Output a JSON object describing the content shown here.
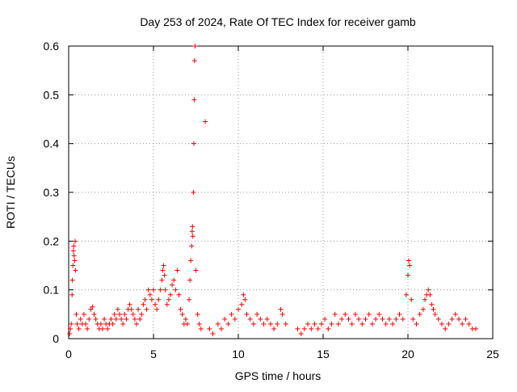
{
  "chart_data": {
    "type": "scatter",
    "title": "Day 253 of 2024, Rate Of TEC Index for receiver gamb",
    "xlabel": "GPS time / hours",
    "ylabel": "ROTI / TECUs",
    "xlim": [
      0,
      25
    ],
    "ylim": [
      0,
      0.6
    ],
    "xticks": [
      0,
      5,
      10,
      15,
      20,
      25
    ],
    "yticks": [
      0,
      0.1,
      0.2,
      0.3,
      0.4,
      0.5,
      0.6
    ],
    "xtick_labels": [
      "0",
      "5",
      "10",
      "15",
      "20",
      "25"
    ],
    "ytick_labels": [
      "0",
      "0.1",
      "0.2",
      "0.3",
      "0.4",
      "0.5",
      "0.6"
    ],
    "grid": true,
    "marker": "+",
    "series_color": "#ff0000",
    "series": [
      {
        "points": [
          [
            0.05,
            0.01
          ],
          [
            0.1,
            0.02
          ],
          [
            0.15,
            0.03
          ],
          [
            0.2,
            0.09
          ],
          [
            0.22,
            0.12
          ],
          [
            0.25,
            0.15
          ],
          [
            0.28,
            0.18
          ],
          [
            0.3,
            0.19
          ],
          [
            0.32,
            0.17
          ],
          [
            0.35,
            0.16
          ],
          [
            0.38,
            0.2
          ],
          [
            0.4,
            0.14
          ],
          [
            0.45,
            0.05
          ],
          [
            0.5,
            0.03
          ],
          [
            0.6,
            0.02
          ],
          [
            0.7,
            0.04
          ],
          [
            0.8,
            0.03
          ],
          [
            0.9,
            0.05
          ],
          [
            1.0,
            0.03
          ],
          [
            1.1,
            0.02
          ],
          [
            1.2,
            0.04
          ],
          [
            1.3,
            0.06
          ],
          [
            1.4,
            0.065
          ],
          [
            1.5,
            0.05
          ],
          [
            1.6,
            0.04
          ],
          [
            1.7,
            0.03
          ],
          [
            1.8,
            0.02
          ],
          [
            1.9,
            0.03
          ],
          [
            2.0,
            0.02
          ],
          [
            2.1,
            0.04
          ],
          [
            2.2,
            0.03
          ],
          [
            2.3,
            0.02
          ],
          [
            2.4,
            0.03
          ],
          [
            2.5,
            0.04
          ],
          [
            2.6,
            0.03
          ],
          [
            2.7,
            0.05
          ],
          [
            2.8,
            0.04
          ],
          [
            2.9,
            0.06
          ],
          [
            3.0,
            0.05
          ],
          [
            3.1,
            0.04
          ],
          [
            3.2,
            0.03
          ],
          [
            3.3,
            0.05
          ],
          [
            3.4,
            0.04
          ],
          [
            3.5,
            0.06
          ],
          [
            3.6,
            0.07
          ],
          [
            3.7,
            0.06
          ],
          [
            3.8,
            0.05
          ],
          [
            3.9,
            0.04
          ],
          [
            4.0,
            0.03
          ],
          [
            4.1,
            0.06
          ],
          [
            4.2,
            0.04
          ],
          [
            4.3,
            0.05
          ],
          [
            4.4,
            0.07
          ],
          [
            4.5,
            0.08
          ],
          [
            4.6,
            0.06
          ],
          [
            4.7,
            0.1
          ],
          [
            4.8,
            0.09
          ],
          [
            4.9,
            0.08
          ],
          [
            5.0,
            0.1
          ],
          [
            5.1,
            0.07
          ],
          [
            5.2,
            0.06
          ],
          [
            5.3,
            0.08
          ],
          [
            5.4,
            0.1
          ],
          [
            5.5,
            0.12
          ],
          [
            5.55,
            0.14
          ],
          [
            5.6,
            0.15
          ],
          [
            5.65,
            0.13
          ],
          [
            5.7,
            0.1
          ],
          [
            5.8,
            0.07
          ],
          [
            5.9,
            0.08
          ],
          [
            6.0,
            0.09
          ],
          [
            6.1,
            0.11
          ],
          [
            6.2,
            0.12
          ],
          [
            6.3,
            0.1
          ],
          [
            6.4,
            0.14
          ],
          [
            6.5,
            0.09
          ],
          [
            6.6,
            0.06
          ],
          [
            6.7,
            0.05
          ],
          [
            6.8,
            0.03
          ],
          [
            6.9,
            0.04
          ],
          [
            7.0,
            0.03
          ],
          [
            7.1,
            0.08
          ],
          [
            7.15,
            0.12
          ],
          [
            7.2,
            0.16
          ],
          [
            7.25,
            0.19
          ],
          [
            7.28,
            0.22
          ],
          [
            7.3,
            0.23
          ],
          [
            7.32,
            0.21
          ],
          [
            7.35,
            0.3
          ],
          [
            7.38,
            0.4
          ],
          [
            7.4,
            0.49
          ],
          [
            7.42,
            0.57
          ],
          [
            7.45,
            0.6
          ],
          [
            7.5,
            0.14
          ],
          [
            7.6,
            0.05
          ],
          [
            7.7,
            0.03
          ],
          [
            7.8,
            0.02
          ],
          [
            8.05,
            0.445
          ],
          [
            8.3,
            0.02
          ],
          [
            8.5,
            0.01
          ],
          [
            8.8,
            0.03
          ],
          [
            9.0,
            0.02
          ],
          [
            9.2,
            0.04
          ],
          [
            9.4,
            0.03
          ],
          [
            9.6,
            0.05
          ],
          [
            9.8,
            0.04
          ],
          [
            10.0,
            0.06
          ],
          [
            10.2,
            0.07
          ],
          [
            10.3,
            0.09
          ],
          [
            10.4,
            0.08
          ],
          [
            10.5,
            0.05
          ],
          [
            10.7,
            0.04
          ],
          [
            10.9,
            0.03
          ],
          [
            11.1,
            0.05
          ],
          [
            11.3,
            0.04
          ],
          [
            11.5,
            0.03
          ],
          [
            11.7,
            0.04
          ],
          [
            11.9,
            0.03
          ],
          [
            12.1,
            0.02
          ],
          [
            12.3,
            0.03
          ],
          [
            12.5,
            0.06
          ],
          [
            12.6,
            0.05
          ],
          [
            12.8,
            0.03
          ],
          [
            13.5,
            0.02
          ],
          [
            13.7,
            0.01
          ],
          [
            13.9,
            0.02
          ],
          [
            14.1,
            0.03
          ],
          [
            14.3,
            0.02
          ],
          [
            14.5,
            0.03
          ],
          [
            14.7,
            0.02
          ],
          [
            14.9,
            0.03
          ],
          [
            15.1,
            0.04
          ],
          [
            15.3,
            0.02
          ],
          [
            15.5,
            0.03
          ],
          [
            15.7,
            0.05
          ],
          [
            15.9,
            0.03
          ],
          [
            16.1,
            0.04
          ],
          [
            16.3,
            0.05
          ],
          [
            16.5,
            0.04
          ],
          [
            16.7,
            0.03
          ],
          [
            16.9,
            0.05
          ],
          [
            17.1,
            0.04
          ],
          [
            17.3,
            0.03
          ],
          [
            17.5,
            0.04
          ],
          [
            17.7,
            0.05
          ],
          [
            17.9,
            0.03
          ],
          [
            18.1,
            0.04
          ],
          [
            18.3,
            0.05
          ],
          [
            18.5,
            0.04
          ],
          [
            18.7,
            0.03
          ],
          [
            18.9,
            0.04
          ],
          [
            19.1,
            0.03
          ],
          [
            19.3,
            0.04
          ],
          [
            19.5,
            0.05
          ],
          [
            19.7,
            0.04
          ],
          [
            19.9,
            0.09
          ],
          [
            20.0,
            0.13
          ],
          [
            20.05,
            0.16
          ],
          [
            20.1,
            0.15
          ],
          [
            20.2,
            0.08
          ],
          [
            20.3,
            0.04
          ],
          [
            20.5,
            0.03
          ],
          [
            20.7,
            0.05
          ],
          [
            20.9,
            0.06
          ],
          [
            21.0,
            0.08
          ],
          [
            21.1,
            0.09
          ],
          [
            21.2,
            0.1
          ],
          [
            21.3,
            0.09
          ],
          [
            21.4,
            0.07
          ],
          [
            21.5,
            0.06
          ],
          [
            21.6,
            0.05
          ],
          [
            21.8,
            0.04
          ],
          [
            22.0,
            0.03
          ],
          [
            22.2,
            0.02
          ],
          [
            22.4,
            0.03
          ],
          [
            22.6,
            0.04
          ],
          [
            22.8,
            0.05
          ],
          [
            23.0,
            0.04
          ],
          [
            23.2,
            0.03
          ],
          [
            23.4,
            0.04
          ],
          [
            23.6,
            0.03
          ],
          [
            23.8,
            0.02
          ],
          [
            24.0,
            0.02
          ]
        ]
      }
    ]
  }
}
